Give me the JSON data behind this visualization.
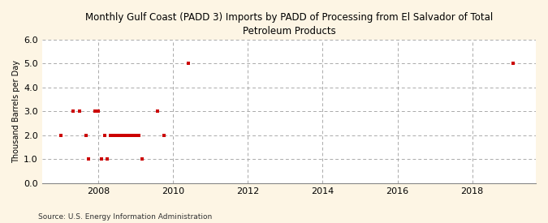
{
  "title": "Monthly Gulf Coast (PADD 3) Imports by PADD of Processing from El Salvador of Total\nPetroleum Products",
  "ylabel": "Thousand Barrels per Day",
  "source": "Source: U.S. Energy Information Administration",
  "background_color": "#fdf5e4",
  "plot_bg_color": "#ffffff",
  "marker_color": "#cc0000",
  "xlim_left": 2006.5,
  "xlim_right": 2019.7,
  "ylim_bottom": 0.0,
  "ylim_top": 6.0,
  "yticks": [
    0.0,
    1.0,
    2.0,
    3.0,
    4.0,
    5.0,
    6.0
  ],
  "xticks": [
    2008,
    2010,
    2012,
    2014,
    2016,
    2018
  ],
  "data_points": [
    [
      2007.0,
      2.0
    ],
    [
      2007.333,
      3.0
    ],
    [
      2007.5,
      3.0
    ],
    [
      2007.667,
      2.0
    ],
    [
      2007.75,
      1.0
    ],
    [
      2007.917,
      3.0
    ],
    [
      2008.0,
      3.0
    ],
    [
      2008.083,
      1.0
    ],
    [
      2008.167,
      2.0
    ],
    [
      2008.25,
      1.0
    ],
    [
      2008.333,
      2.0
    ],
    [
      2008.417,
      2.0
    ],
    [
      2008.5,
      2.0
    ],
    [
      2008.583,
      2.0
    ],
    [
      2008.667,
      2.0
    ],
    [
      2008.75,
      2.0
    ],
    [
      2008.833,
      2.0
    ],
    [
      2008.917,
      2.0
    ],
    [
      2009.0,
      2.0
    ],
    [
      2009.083,
      2.0
    ],
    [
      2009.167,
      1.0
    ],
    [
      2009.583,
      3.0
    ],
    [
      2009.75,
      2.0
    ],
    [
      2010.417,
      5.0
    ],
    [
      2019.083,
      5.0
    ]
  ]
}
